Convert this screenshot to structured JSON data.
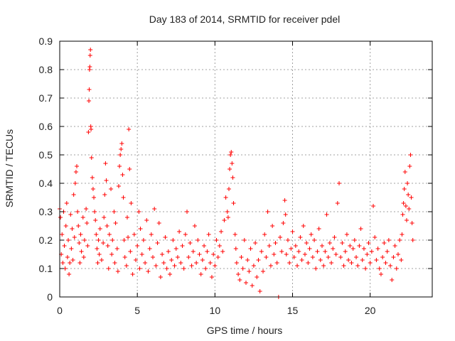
{
  "chart_data": {
    "type": "scatter",
    "title": "Day 183 of 2014, SRMTID for receiver pdel",
    "xlabel": "GPS time / hours",
    "ylabel": "SRMTID / TECUs",
    "xlim": [
      0,
      24
    ],
    "ylim": [
      0,
      0.9
    ],
    "xticks": [
      0,
      5,
      10,
      15,
      20
    ],
    "yticks": [
      0,
      0.1,
      0.2,
      0.3,
      0.4,
      0.5,
      0.6,
      0.7,
      0.8,
      0.9
    ],
    "xtick_labels": [
      "0",
      "5",
      "10",
      "15",
      "20"
    ],
    "ytick_labels": [
      "0",
      "0.1",
      "0.2",
      "0.3",
      "0.4",
      "0.5",
      "0.6",
      "0.7",
      "0.8",
      "0.9"
    ],
    "grid": true,
    "marker": "+",
    "marker_color": "#ff0000",
    "series": [
      {
        "name": "SRMTID",
        "points": [
          [
            0.0,
            0.31
          ],
          [
            0.05,
            0.28
          ],
          [
            0.1,
            0.15
          ],
          [
            0.15,
            0.22
          ],
          [
            0.2,
            0.12
          ],
          [
            0.25,
            0.3
          ],
          [
            0.3,
            0.18
          ],
          [
            0.35,
            0.1
          ],
          [
            0.4,
            0.25
          ],
          [
            0.45,
            0.33
          ],
          [
            0.5,
            0.14
          ],
          [
            0.55,
            0.2
          ],
          [
            0.6,
            0.08
          ],
          [
            0.65,
            0.12
          ],
          [
            0.7,
            0.29
          ],
          [
            0.75,
            0.17
          ],
          [
            0.8,
            0.24
          ],
          [
            0.85,
            0.13
          ],
          [
            0.9,
            0.36
          ],
          [
            0.95,
            0.21
          ],
          [
            1.0,
            0.4
          ],
          [
            1.05,
            0.44
          ],
          [
            1.1,
            0.46
          ],
          [
            1.15,
            0.3
          ],
          [
            1.2,
            0.25
          ],
          [
            1.25,
            0.19
          ],
          [
            1.3,
            0.12
          ],
          [
            1.35,
            0.22
          ],
          [
            1.4,
            0.16
          ],
          [
            1.5,
            0.28
          ],
          [
            1.55,
            0.14
          ],
          [
            1.6,
            0.2
          ],
          [
            1.7,
            0.31
          ],
          [
            1.75,
            0.26
          ],
          [
            1.8,
            0.18
          ],
          [
            1.85,
            0.58
          ],
          [
            1.88,
            0.69
          ],
          [
            1.9,
            0.73
          ],
          [
            1.92,
            0.8
          ],
          [
            1.94,
            0.81
          ],
          [
            1.96,
            0.85
          ],
          [
            1.98,
            0.87
          ],
          [
            2.0,
            0.6
          ],
          [
            2.02,
            0.59
          ],
          [
            2.05,
            0.49
          ],
          [
            2.1,
            0.42
          ],
          [
            2.15,
            0.38
          ],
          [
            2.2,
            0.35
          ],
          [
            2.25,
            0.3
          ],
          [
            2.3,
            0.27
          ],
          [
            2.35,
            0.22
          ],
          [
            2.4,
            0.17
          ],
          [
            2.45,
            0.12
          ],
          [
            2.5,
            0.2
          ],
          [
            2.55,
            0.15
          ],
          [
            2.6,
            0.24
          ],
          [
            2.7,
            0.13
          ],
          [
            2.8,
            0.19
          ],
          [
            2.85,
            0.28
          ],
          [
            2.9,
            0.36
          ],
          [
            2.95,
            0.47
          ],
          [
            3.0,
            0.41
          ],
          [
            3.05,
            0.25
          ],
          [
            3.1,
            0.18
          ],
          [
            3.15,
            0.1
          ],
          [
            3.2,
            0.22
          ],
          [
            3.3,
            0.38
          ],
          [
            3.35,
            0.15
          ],
          [
            3.4,
            0.2
          ],
          [
            3.5,
            0.3
          ],
          [
            3.55,
            0.12
          ],
          [
            3.6,
            0.26
          ],
          [
            3.7,
            0.17
          ],
          [
            3.75,
            0.09
          ],
          [
            3.8,
            0.39
          ],
          [
            3.85,
            0.46
          ],
          [
            3.9,
            0.5
          ],
          [
            3.95,
            0.52
          ],
          [
            4.0,
            0.54
          ],
          [
            4.05,
            0.43
          ],
          [
            4.1,
            0.35
          ],
          [
            4.15,
            0.2
          ],
          [
            4.2,
            0.14
          ],
          [
            4.3,
            0.11
          ],
          [
            4.35,
            0.28
          ],
          [
            4.4,
            0.21
          ],
          [
            4.45,
            0.59
          ],
          [
            4.5,
            0.45
          ],
          [
            4.55,
            0.16
          ],
          [
            4.6,
            0.33
          ],
          [
            4.7,
            0.08
          ],
          [
            4.8,
            0.22
          ],
          [
            4.9,
            0.13
          ],
          [
            5.0,
            0.18
          ],
          [
            5.1,
            0.3
          ],
          [
            5.15,
            0.1
          ],
          [
            5.2,
            0.24
          ],
          [
            5.3,
            0.15
          ],
          [
            5.4,
            0.2
          ],
          [
            5.5,
            0.12
          ],
          [
            5.6,
            0.27
          ],
          [
            5.7,
            0.09
          ],
          [
            5.8,
            0.17
          ],
          [
            5.9,
            0.22
          ],
          [
            6.0,
            0.14
          ],
          [
            6.1,
            0.31
          ],
          [
            6.2,
            0.11
          ],
          [
            6.3,
            0.19
          ],
          [
            6.4,
            0.26
          ],
          [
            6.5,
            0.07
          ],
          [
            6.6,
            0.15
          ],
          [
            6.7,
            0.12
          ],
          [
            6.8,
            0.21
          ],
          [
            6.9,
            0.1
          ],
          [
            7.0,
            0.16
          ],
          [
            7.1,
            0.08
          ],
          [
            7.2,
            0.13
          ],
          [
            7.3,
            0.2
          ],
          [
            7.4,
            0.11
          ],
          [
            7.5,
            0.17
          ],
          [
            7.6,
            0.14
          ],
          [
            7.7,
            0.23
          ],
          [
            7.8,
            0.12
          ],
          [
            7.9,
            0.18
          ],
          [
            8.0,
            0.1
          ],
          [
            8.1,
            0.22
          ],
          [
            8.2,
            0.3
          ],
          [
            8.3,
            0.14
          ],
          [
            8.4,
            0.19
          ],
          [
            8.5,
            0.11
          ],
          [
            8.6,
            0.16
          ],
          [
            8.7,
            0.25
          ],
          [
            8.8,
            0.12
          ],
          [
            8.9,
            0.2
          ],
          [
            9.0,
            0.15
          ],
          [
            9.1,
            0.08
          ],
          [
            9.2,
            0.13
          ],
          [
            9.3,
            0.18
          ],
          [
            9.4,
            0.1
          ],
          [
            9.5,
            0.16
          ],
          [
            9.6,
            0.22
          ],
          [
            9.7,
            0.12
          ],
          [
            9.8,
            0.07
          ],
          [
            9.9,
            0.15
          ],
          [
            10.0,
            0.11
          ],
          [
            10.1,
            0.2
          ],
          [
            10.2,
            0.14
          ],
          [
            10.3,
            0.18
          ],
          [
            10.4,
            0.23
          ],
          [
            10.5,
            0.16
          ],
          [
            10.6,
            0.27
          ],
          [
            10.7,
            0.35
          ],
          [
            10.8,
            0.3
          ],
          [
            10.85,
            0.28
          ],
          [
            10.9,
            0.38
          ],
          [
            10.95,
            0.45
          ],
          [
            11.0,
            0.5
          ],
          [
            11.05,
            0.51
          ],
          [
            11.1,
            0.47
          ],
          [
            11.15,
            0.42
          ],
          [
            11.2,
            0.33
          ],
          [
            11.3,
            0.22
          ],
          [
            11.35,
            0.17
          ],
          [
            11.4,
            0.12
          ],
          [
            11.5,
            0.08
          ],
          [
            11.6,
            0.06
          ],
          [
            11.7,
            0.14
          ],
          [
            11.8,
            0.1
          ],
          [
            11.9,
            0.2
          ],
          [
            12.0,
            0.05
          ],
          [
            12.1,
            0.13
          ],
          [
            12.2,
            0.09
          ],
          [
            12.3,
            0.17
          ],
          [
            12.4,
            0.04
          ],
          [
            12.5,
            0.11
          ],
          [
            12.6,
            0.19
          ],
          [
            12.7,
            0.07
          ],
          [
            12.8,
            0.13
          ],
          [
            12.9,
            0.02
          ],
          [
            13.0,
            0.16
          ],
          [
            13.1,
            0.09
          ],
          [
            13.2,
            0.22
          ],
          [
            13.3,
            0.14
          ],
          [
            13.4,
            0.3
          ],
          [
            13.5,
            0.18
          ],
          [
            13.6,
            0.11
          ],
          [
            13.7,
            0.25
          ],
          [
            13.8,
            0.15
          ],
          [
            13.9,
            0.19
          ],
          [
            14.0,
            0.12
          ],
          [
            14.1,
            0.0
          ],
          [
            14.2,
            0.21
          ],
          [
            14.3,
            0.16
          ],
          [
            14.4,
            0.26
          ],
          [
            14.5,
            0.34
          ],
          [
            14.55,
            0.29
          ],
          [
            14.6,
            0.15
          ],
          [
            14.7,
            0.2
          ],
          [
            14.8,
            0.12
          ],
          [
            14.9,
            0.17
          ],
          [
            15.0,
            0.23
          ],
          [
            15.1,
            0.14
          ],
          [
            15.2,
            0.18
          ],
          [
            15.3,
            0.11
          ],
          [
            15.4,
            0.16
          ],
          [
            15.5,
            0.21
          ],
          [
            15.6,
            0.13
          ],
          [
            15.7,
            0.25
          ],
          [
            15.8,
            0.15
          ],
          [
            15.9,
            0.19
          ],
          [
            16.0,
            0.12
          ],
          [
            16.1,
            0.17
          ],
          [
            16.2,
            0.22
          ],
          [
            16.3,
            0.14
          ],
          [
            16.4,
            0.2
          ],
          [
            16.5,
            0.1
          ],
          [
            16.6,
            0.16
          ],
          [
            16.7,
            0.24
          ],
          [
            16.8,
            0.13
          ],
          [
            16.9,
            0.18
          ],
          [
            17.0,
            0.11
          ],
          [
            17.1,
            0.16
          ],
          [
            17.2,
            0.29
          ],
          [
            17.3,
            0.14
          ],
          [
            17.4,
            0.19
          ],
          [
            17.5,
            0.12
          ],
          [
            17.6,
            0.17
          ],
          [
            17.7,
            0.21
          ],
          [
            17.8,
            0.15
          ],
          [
            17.9,
            0.33
          ],
          [
            18.0,
            0.4
          ],
          [
            18.1,
            0.14
          ],
          [
            18.2,
            0.19
          ],
          [
            18.3,
            0.11
          ],
          [
            18.4,
            0.16
          ],
          [
            18.5,
            0.22
          ],
          [
            18.6,
            0.13
          ],
          [
            18.7,
            0.18
          ],
          [
            18.8,
            0.12
          ],
          [
            18.9,
            0.17
          ],
          [
            19.0,
            0.2
          ],
          [
            19.1,
            0.14
          ],
          [
            19.2,
            0.11
          ],
          [
            19.3,
            0.18
          ],
          [
            19.4,
            0.24
          ],
          [
            19.5,
            0.13
          ],
          [
            19.6,
            0.17
          ],
          [
            19.7,
            0.1
          ],
          [
            19.8,
            0.15
          ],
          [
            19.9,
            0.19
          ],
          [
            20.0,
            0.12
          ],
          [
            20.1,
            0.16
          ],
          [
            20.2,
            0.32
          ],
          [
            20.3,
            0.21
          ],
          [
            20.4,
            0.13
          ],
          [
            20.5,
            0.17
          ],
          [
            20.6,
            0.1
          ],
          [
            20.7,
            0.08
          ],
          [
            20.8,
            0.14
          ],
          [
            20.9,
            0.19
          ],
          [
            21.0,
            0.12
          ],
          [
            21.1,
            0.16
          ],
          [
            21.2,
            0.2
          ],
          [
            21.3,
            0.11
          ],
          [
            21.4,
            0.06
          ],
          [
            21.5,
            0.14
          ],
          [
            21.6,
            0.18
          ],
          [
            21.7,
            0.1
          ],
          [
            21.8,
            0.15
          ],
          [
            21.9,
            0.2
          ],
          [
            22.0,
            0.13
          ],
          [
            22.05,
            0.22
          ],
          [
            22.1,
            0.29
          ],
          [
            22.15,
            0.33
          ],
          [
            22.2,
            0.38
          ],
          [
            22.25,
            0.44
          ],
          [
            22.3,
            0.32
          ],
          [
            22.35,
            0.27
          ],
          [
            22.4,
            0.4
          ],
          [
            22.45,
            0.36
          ],
          [
            22.5,
            0.31
          ],
          [
            22.55,
            0.46
          ],
          [
            22.6,
            0.5
          ],
          [
            22.65,
            0.35
          ],
          [
            22.7,
            0.26
          ],
          [
            22.75,
            0.2
          ]
        ]
      }
    ]
  }
}
